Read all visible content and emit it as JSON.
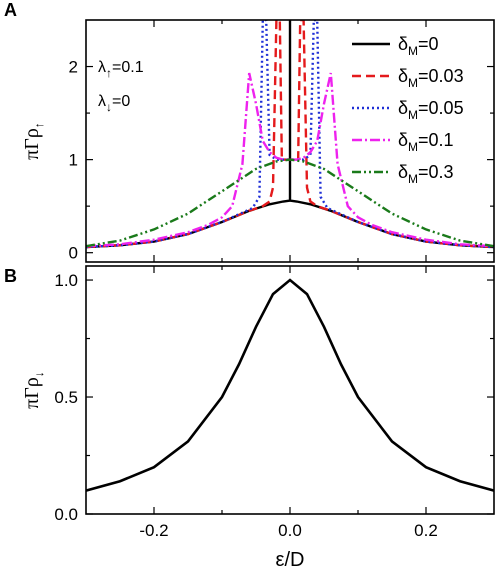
{
  "chart_data": [
    {
      "panel": "A",
      "type": "line",
      "ylabel": "πΓρ↑",
      "ylabel_parts": {
        "main": "πΓρ",
        "sub": "↑"
      },
      "xlim": [
        -0.3,
        0.3
      ],
      "ylim": [
        -0.1,
        2.5
      ],
      "yticks": [
        0,
        1,
        2
      ],
      "ytick_labels": [
        "0",
        "1",
        "2"
      ],
      "xticks": [
        -0.2,
        0.0,
        0.2
      ],
      "annotations": [
        {
          "main": "λ",
          "sub": "↑",
          "rest": "=0.1"
        },
        {
          "main": "λ",
          "sub": "↓",
          "rest": "=0"
        }
      ],
      "series": [
        {
          "name": "δM=0",
          "label": {
            "main": "δ",
            "sub": "M",
            "rest": "=0"
          },
          "color": "#000000",
          "dash": "solid",
          "x": [
            -0.3,
            -0.25,
            -0.2,
            -0.15,
            -0.1,
            -0.06,
            -0.03,
            -0.01,
            0.0,
            0.0,
            0.0,
            0.01,
            0.03,
            0.06,
            0.1,
            0.15,
            0.2,
            0.25,
            0.3
          ],
          "y": [
            0.06,
            0.08,
            0.12,
            0.2,
            0.33,
            0.45,
            0.52,
            0.55,
            0.56,
            2.5,
            0.56,
            0.55,
            0.52,
            0.45,
            0.33,
            0.2,
            0.12,
            0.08,
            0.06
          ]
        },
        {
          "name": "δM=0.03",
          "label": {
            "main": "δ",
            "sub": "M",
            "rest": "=0.03"
          },
          "color": "#e41a1c",
          "dash": "9,5",
          "x": [
            -0.3,
            -0.25,
            -0.2,
            -0.15,
            -0.1,
            -0.06,
            -0.04,
            -0.03,
            -0.025,
            -0.02,
            -0.015,
            -0.012,
            -0.008,
            -0.004,
            0.0,
            0.004,
            0.008,
            0.012,
            0.015,
            0.02,
            0.025,
            0.03,
            0.04,
            0.06,
            0.1,
            0.15,
            0.2,
            0.25,
            0.3
          ],
          "y": [
            0.06,
            0.08,
            0.12,
            0.2,
            0.33,
            0.45,
            0.5,
            0.55,
            0.7,
            2.5,
            2.5,
            1.0,
            1.0,
            1.0,
            1.0,
            1.0,
            1.0,
            1.0,
            2.5,
            2.5,
            0.7,
            0.55,
            0.5,
            0.45,
            0.33,
            0.2,
            0.12,
            0.08,
            0.06
          ]
        },
        {
          "name": "δM=0.05",
          "label": {
            "main": "δ",
            "sub": "M",
            "rest": "=0.05"
          },
          "color": "#1f2fd6",
          "dash": "2,3",
          "x": [
            -0.3,
            -0.25,
            -0.2,
            -0.15,
            -0.1,
            -0.07,
            -0.055,
            -0.045,
            -0.04,
            -0.035,
            -0.03,
            -0.02,
            0.0,
            0.02,
            0.03,
            0.035,
            0.04,
            0.045,
            0.055,
            0.07,
            0.1,
            0.15,
            0.2,
            0.25,
            0.3
          ],
          "y": [
            0.06,
            0.08,
            0.12,
            0.2,
            0.33,
            0.43,
            0.48,
            0.6,
            2.5,
            2.5,
            1.05,
            1.0,
            1.0,
            1.0,
            1.05,
            2.5,
            2.5,
            0.6,
            0.48,
            0.43,
            0.33,
            0.2,
            0.12,
            0.08,
            0.06
          ]
        },
        {
          "name": "δM=0.1",
          "label": {
            "main": "δ",
            "sub": "M",
            "rest": "=0.1"
          },
          "color": "#ee22ee",
          "dash": "10,3,2,3",
          "x": [
            -0.3,
            -0.25,
            -0.2,
            -0.15,
            -0.12,
            -0.1,
            -0.085,
            -0.07,
            -0.06,
            -0.05,
            -0.04,
            -0.03,
            -0.02,
            -0.01,
            0.0,
            0.01,
            0.02,
            0.03,
            0.04,
            0.05,
            0.06,
            0.07,
            0.085,
            0.1,
            0.12,
            0.15,
            0.2,
            0.25,
            0.3
          ],
          "y": [
            0.07,
            0.09,
            0.14,
            0.22,
            0.3,
            0.38,
            0.5,
            0.95,
            1.93,
            1.6,
            1.2,
            1.08,
            1.02,
            1.0,
            1.0,
            1.0,
            1.02,
            1.08,
            1.2,
            1.6,
            1.93,
            0.95,
            0.5,
            0.38,
            0.3,
            0.22,
            0.14,
            0.09,
            0.07
          ]
        },
        {
          "name": "δM=0.3",
          "label": {
            "main": "δ",
            "sub": "M",
            "rest": "=0.3"
          },
          "color": "#1a7a1a",
          "dash": "9,3,2,3,2,3",
          "x": [
            -0.3,
            -0.25,
            -0.2,
            -0.15,
            -0.1,
            -0.05,
            -0.02,
            0.0,
            0.02,
            0.05,
            0.1,
            0.15,
            0.2,
            0.25,
            0.3
          ],
          "y": [
            0.07,
            0.13,
            0.25,
            0.42,
            0.66,
            0.9,
            0.98,
            1.0,
            0.98,
            0.9,
            0.66,
            0.42,
            0.25,
            0.13,
            0.07
          ]
        }
      ]
    },
    {
      "panel": "B",
      "type": "line",
      "ylabel": "πΓρ↓",
      "ylabel_parts": {
        "main": "πΓρ",
        "sub": "↓"
      },
      "xlabel": "ε/D",
      "xlim": [
        -0.3,
        0.3
      ],
      "ylim": [
        0.0,
        1.06
      ],
      "yticks": [
        0.0,
        0.5,
        1.0
      ],
      "ytick_labels": [
        "0.0",
        "0.5",
        "1.0"
      ],
      "xticks": [
        -0.2,
        0.0,
        0.2
      ],
      "xtick_labels": [
        "-0.2",
        "0.0",
        "0.2"
      ],
      "series": [
        {
          "color": "#000000",
          "dash": "solid",
          "x": [
            -0.3,
            -0.25,
            -0.2,
            -0.15,
            -0.1,
            -0.075,
            -0.05,
            -0.025,
            0.0,
            0.025,
            0.05,
            0.075,
            0.1,
            0.15,
            0.2,
            0.25,
            0.3
          ],
          "y": [
            0.1,
            0.14,
            0.2,
            0.31,
            0.5,
            0.64,
            0.8,
            0.94,
            1.0,
            0.94,
            0.8,
            0.64,
            0.5,
            0.31,
            0.2,
            0.14,
            0.1
          ]
        }
      ]
    }
  ]
}
